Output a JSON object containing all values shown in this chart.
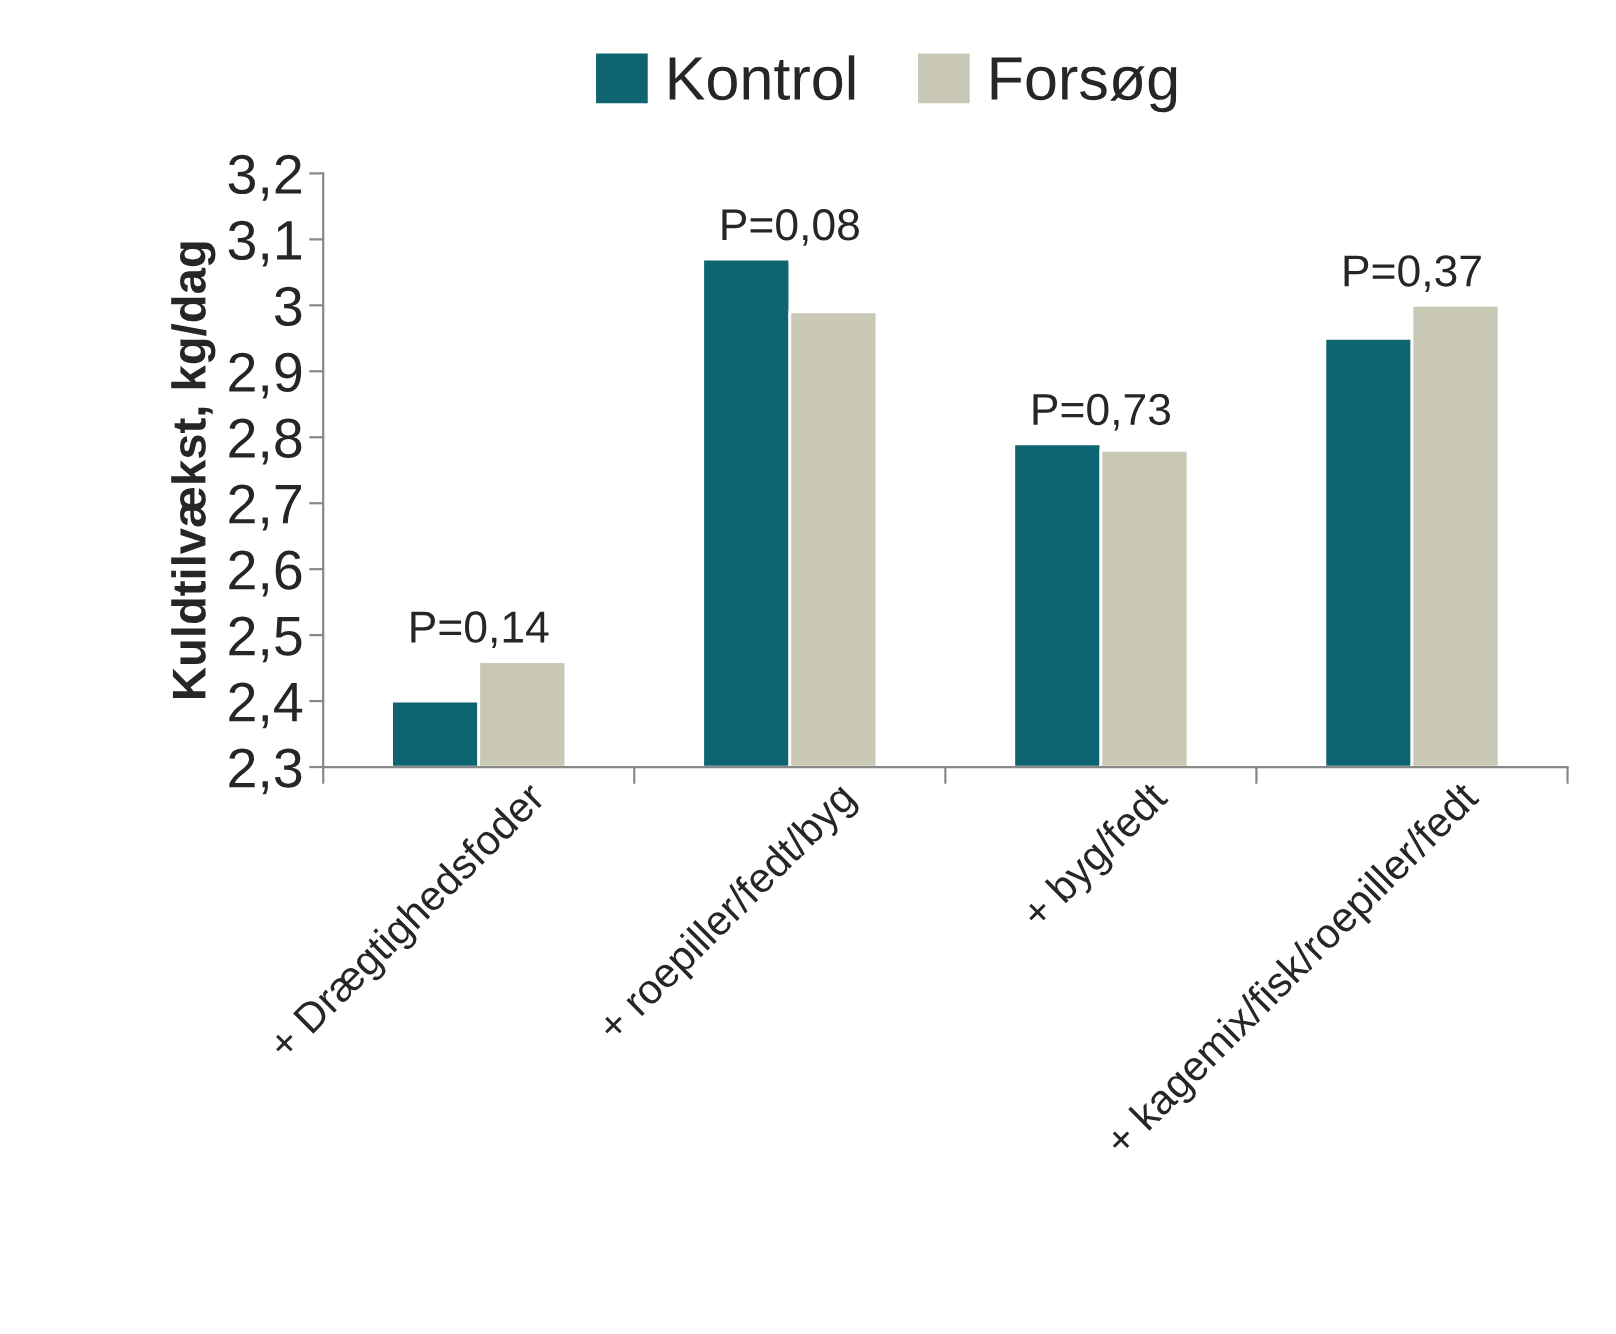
{
  "chart_data": {
    "type": "bar",
    "ylabel": "Kuldtilvækst, kg/dag",
    "categories": [
      "+ Drægtighedsfoder",
      "+ roepiller/fedt/byg",
      "+ byg/fedt",
      "+ kagemix/fisk/roepiller/fedt"
    ],
    "series": [
      {
        "name": "Kontrol",
        "color": "#0e6470",
        "values": [
          2.4,
          3.07,
          2.79,
          2.95
        ]
      },
      {
        "name": "Forsøg",
        "color": "#c8c8b4",
        "values": [
          2.46,
          2.99,
          2.78,
          3.0
        ]
      }
    ],
    "ylim": [
      2.3,
      3.2
    ],
    "yticks": [
      {
        "value": 2.3,
        "label": "2,3"
      },
      {
        "value": 2.4,
        "label": "2,4"
      },
      {
        "value": 2.5,
        "label": "2,5"
      },
      {
        "value": 2.6,
        "label": "2,6"
      },
      {
        "value": 2.7,
        "label": "2,7"
      },
      {
        "value": 2.8,
        "label": "2,8"
      },
      {
        "value": 2.9,
        "label": "2,9"
      },
      {
        "value": 3.0,
        "label": "3"
      },
      {
        "value": 3.1,
        "label": "3,1"
      },
      {
        "value": 3.2,
        "label": "3,2"
      }
    ],
    "annotations": [
      "P=0,14",
      "P=0,08",
      "P=0,73",
      "P=0,37"
    ],
    "grid": false,
    "legend": "top"
  }
}
